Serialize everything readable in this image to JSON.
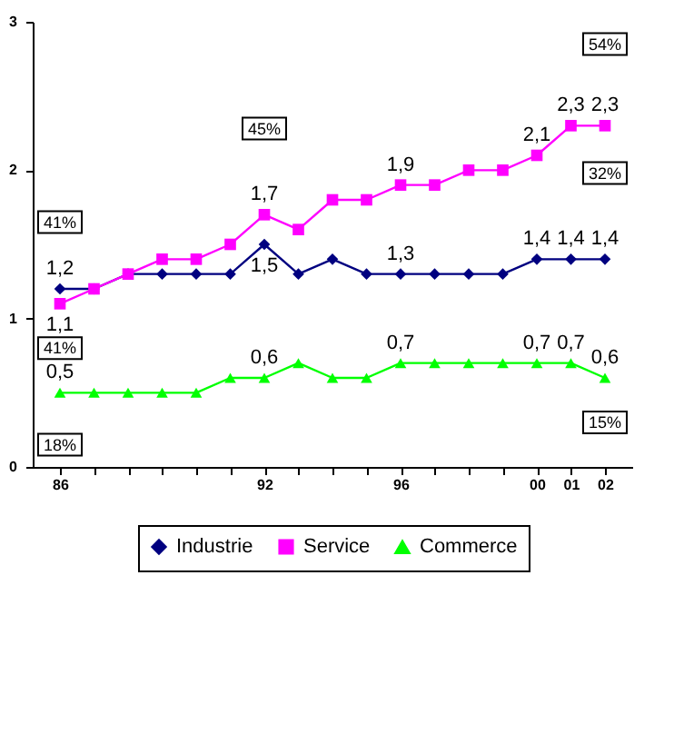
{
  "chart_data": {
    "type": "line",
    "categories": [
      "86",
      null,
      null,
      null,
      null,
      null,
      "92",
      null,
      null,
      null,
      "96",
      null,
      null,
      null,
      "00",
      "01",
      "02"
    ],
    "series": [
      {
        "name": "Industrie",
        "color": "#000080",
        "marker": "diamond",
        "values": [
          1.2,
          1.2,
          1.3,
          1.3,
          1.3,
          1.3,
          1.5,
          1.3,
          1.4,
          1.3,
          1.3,
          1.3,
          1.3,
          1.3,
          1.4,
          1.4,
          1.4
        ],
        "value_labels": [
          "1,2",
          null,
          null,
          null,
          null,
          null,
          "1,5",
          null,
          null,
          null,
          "1,3",
          null,
          null,
          null,
          "1,4",
          "1,4",
          "1,4"
        ]
      },
      {
        "name": "Service",
        "color": "#ff00ff",
        "marker": "square",
        "values": [
          1.1,
          1.2,
          1.3,
          1.4,
          1.4,
          1.5,
          1.7,
          1.6,
          1.8,
          1.8,
          1.9,
          1.9,
          2.0,
          2.0,
          2.1,
          2.3,
          2.3
        ],
        "value_labels": [
          "1,1",
          null,
          null,
          null,
          null,
          null,
          "1,7",
          null,
          null,
          null,
          "1,9",
          null,
          null,
          null,
          "2,1",
          "2,3",
          "2,3"
        ]
      },
      {
        "name": "Commerce",
        "color": "#00ff00",
        "marker": "triangle",
        "values": [
          0.5,
          0.5,
          0.5,
          0.5,
          0.5,
          0.6,
          0.6,
          0.7,
          0.6,
          0.6,
          0.7,
          0.7,
          0.7,
          0.7,
          0.7,
          0.7,
          0.6
        ],
        "value_labels": [
          "0,5",
          null,
          null,
          null,
          null,
          null,
          "0,6",
          null,
          null,
          null,
          "0,7",
          null,
          null,
          null,
          "0,7",
          "0,7",
          "0,6"
        ]
      }
    ],
    "annotations": [
      {
        "text": "41%",
        "x": "86",
        "y": 1.65
      },
      {
        "text": "41%",
        "x": "86",
        "y": 0.8
      },
      {
        "text": "18%",
        "x": "86",
        "y": 0.15
      },
      {
        "text": "45%",
        "x": "92",
        "y": 2.28
      },
      {
        "text": "54%",
        "x": "02",
        "y": 2.85
      },
      {
        "text": "32%",
        "x": "02",
        "y": 1.98
      },
      {
        "text": "15%",
        "x": "02",
        "y": 0.3
      }
    ],
    "ylim": [
      0,
      3
    ],
    "yticks": [
      0,
      1,
      2,
      3
    ],
    "grid": false,
    "legend": "bottom"
  }
}
